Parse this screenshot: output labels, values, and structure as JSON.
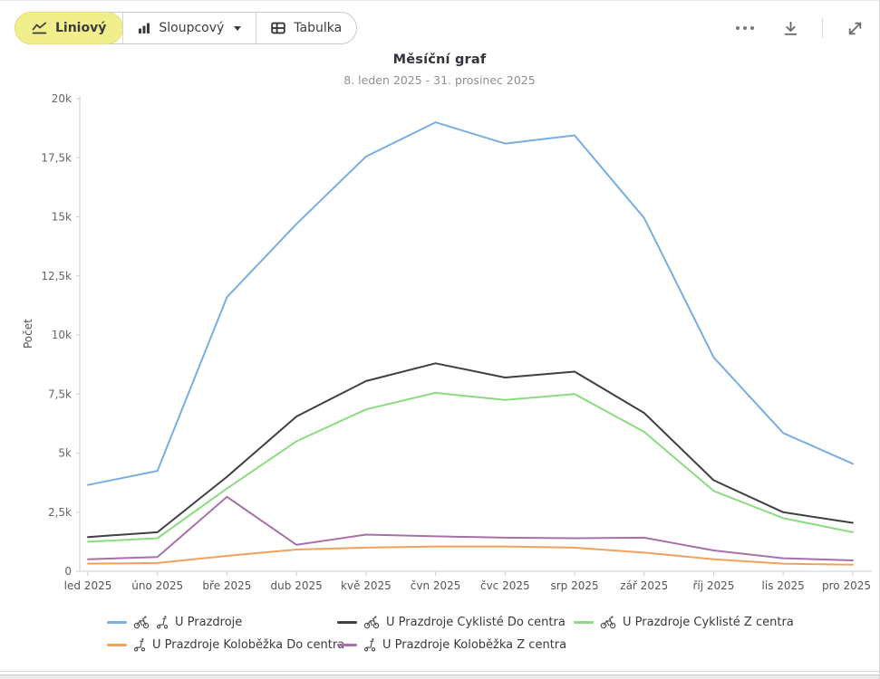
{
  "toolbar": {
    "buttons": [
      {
        "label": "Liniový",
        "icon": "line-chart-icon",
        "selected": true
      },
      {
        "label": "Sloupcový",
        "icon": "bar-chart-icon",
        "dropdown": true
      },
      {
        "label": "Tabulka",
        "icon": "table-icon"
      }
    ],
    "actions": [
      {
        "name": "more-options",
        "icon": "ellipsis-icon"
      },
      {
        "name": "download",
        "icon": "download-icon"
      },
      {
        "name": "fullscreen",
        "icon": "expand-icon"
      }
    ],
    "selected_background": "#f1ee8c"
  },
  "chart_data": {
    "type": "line",
    "title": "Měsíční graf",
    "subtitle": "8. leden 2025 - 31. prosinec 2025",
    "xlabel": "",
    "ylabel": "Počet",
    "ylim": [
      0,
      20000
    ],
    "ytick_interval": 2500,
    "ytick_labels": [
      "0",
      "2,5k",
      "5k",
      "7,5k",
      "10k",
      "12,5k",
      "15k",
      "17,5k",
      "20k"
    ],
    "grid": false,
    "legend_position": "bottom",
    "categories": [
      "led 2025",
      "úno 2025",
      "bře 2025",
      "dub 2025",
      "kvě 2025",
      "čvn 2025",
      "čvc 2025",
      "srp 2025",
      "zář 2025",
      "říj 2025",
      "lis 2025",
      "pro 2025"
    ],
    "series": [
      {
        "name": "U Prazdroje",
        "color": "#79aee1",
        "icons": [
          "bicycle",
          "scooter"
        ],
        "values": [
          3650,
          4250,
          11600,
          14700,
          17550,
          19000,
          18100,
          18450,
          14950,
          9050,
          5850,
          4550
        ]
      },
      {
        "name": "U Prazdroje Cyklisté Do centra",
        "color": "#3f3f44",
        "icons": [
          "bicycle"
        ],
        "values": [
          1450,
          1650,
          4000,
          6550,
          8050,
          8800,
          8200,
          8450,
          6700,
          3850,
          2500,
          2050
        ]
      },
      {
        "name": "U Prazdroje Cyklisté Z centra",
        "color": "#8bdc80",
        "icons": [
          "bicycle"
        ],
        "values": [
          1250,
          1400,
          3500,
          5500,
          6850,
          7550,
          7250,
          7500,
          5900,
          3400,
          2250,
          1650
        ]
      },
      {
        "name": "U Prazdroje Koloběžka Do centra",
        "color": "#f2a25e",
        "icons": [
          "scooter"
        ],
        "values": [
          320,
          350,
          650,
          920,
          1000,
          1050,
          1050,
          1000,
          790,
          510,
          320,
          280
        ]
      },
      {
        "name": "U Prazdroje Koloběžka Z centra",
        "color": "#a870a8",
        "icons": [
          "scooter"
        ],
        "values": [
          510,
          600,
          3150,
          1120,
          1550,
          1480,
          1420,
          1400,
          1420,
          880,
          550,
          460
        ]
      }
    ]
  }
}
